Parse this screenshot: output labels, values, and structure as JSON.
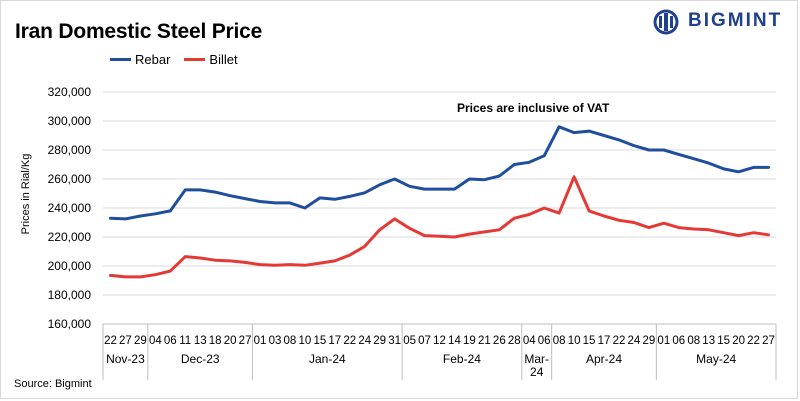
{
  "title": "Iran Domestic Steel Price",
  "brand": {
    "name": "BIGMINT",
    "color": "#1f3f8f"
  },
  "source": "Source: Bigmint",
  "chart_data": {
    "type": "line",
    "title": "Iran Domestic Steel Price",
    "ylabel": "Prices in Rial/Kg",
    "ylim": [
      160000,
      320000
    ],
    "yticks": [
      160000,
      180000,
      200000,
      220000,
      240000,
      260000,
      280000,
      300000,
      320000
    ],
    "ytick_labels": [
      "160,000",
      "180,000",
      "200,000",
      "220,000",
      "240,000",
      "260,000",
      "280,000",
      "300,000",
      "320,000"
    ],
    "grid": "horizontal",
    "legend_placement": "top-left",
    "annotation": "Prices are inclusive  of VAT",
    "x": [
      "22",
      "27",
      "29",
      "04",
      "06",
      "11",
      "13",
      "18",
      "20",
      "27",
      "01",
      "03",
      "08",
      "10",
      "15",
      "17",
      "22",
      "24",
      "29",
      "31",
      "05",
      "07",
      "12",
      "14",
      "19",
      "21",
      "26",
      "28",
      "04",
      "06",
      "08",
      "10",
      "15",
      "17",
      "22",
      "24",
      "29",
      "01",
      "06",
      "08",
      "13",
      "15",
      "20",
      "22",
      "27"
    ],
    "months": [
      {
        "label": "Nov-23",
        "start": 0,
        "end": 2
      },
      {
        "label": "Dec-23",
        "start": 3,
        "end": 9
      },
      {
        "label": "Jan-24",
        "start": 10,
        "end": 19
      },
      {
        "label": "Feb-24",
        "start": 20,
        "end": 27
      },
      {
        "label": "Mar-\n24",
        "start": 28,
        "end": 29
      },
      {
        "label": "Apr-24",
        "start": 30,
        "end": 36
      },
      {
        "label": "May-24",
        "start": 37,
        "end": 44
      }
    ],
    "series": [
      {
        "name": "Rebar",
        "color": "#1f4e9c",
        "values": [
          233000,
          232500,
          234500,
          236000,
          238000,
          252500,
          252500,
          251000,
          248500,
          246500,
          244500,
          243500,
          243500,
          240000,
          247000,
          246000,
          248000,
          250500,
          256000,
          260000,
          255000,
          253000,
          253000,
          253000,
          260000,
          259500,
          262000,
          270000,
          271500,
          276000,
          296000,
          292000,
          293000,
          290000,
          287000,
          283000,
          280000,
          280000,
          277000,
          274000,
          271000,
          267000,
          265000,
          268000,
          268000
        ]
      },
      {
        "name": "Billet",
        "color": "#e53935",
        "values": [
          193500,
          192500,
          192500,
          194000,
          196500,
          206500,
          205500,
          204000,
          203500,
          202500,
          201000,
          200500,
          201000,
          200500,
          202000,
          203500,
          207500,
          213500,
          225000,
          232500,
          226000,
          221000,
          220500,
          220000,
          222000,
          223500,
          225000,
          233000,
          235500,
          240000,
          236500,
          261500,
          238000,
          234500,
          231500,
          230000,
          226500,
          229500,
          226500,
          225500,
          225000,
          223000,
          221000,
          223000,
          221500
        ]
      }
    ]
  }
}
